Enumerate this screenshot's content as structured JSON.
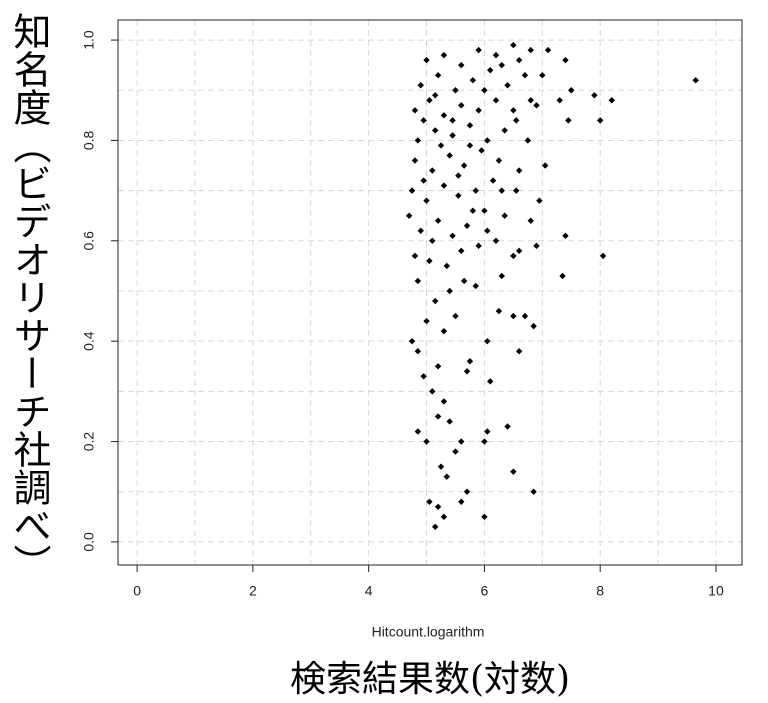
{
  "chart_data": {
    "type": "scatter",
    "x_label": "Hitcount.logarithm",
    "x_label_ja": "検索結果数(対数)",
    "y_label": "知名度（ビデオリサーチ社調べ）",
    "color": "#000000",
    "grid": true,
    "xlim": [
      -0.33,
      10.45
    ],
    "ylim": [
      -0.046,
      1.04
    ],
    "xticks": [
      0,
      2,
      4,
      6,
      8,
      10
    ],
    "yticks": [
      {
        "value": 0,
        "label": "0.0"
      },
      0.2,
      0.4,
      0.6,
      0.8,
      {
        "value": 1,
        "label": "1.0"
      }
    ],
    "xgrid": [
      0,
      1,
      2,
      3,
      4,
      5,
      6,
      7,
      8,
      9,
      10
    ],
    "ygrid": [
      0,
      0.1,
      0.2,
      0.3,
      0.4,
      0.5,
      0.6,
      0.7,
      0.8,
      0.9,
      1
    ],
    "x": [
      9.65,
      8.2,
      8.0,
      7.9,
      7.5,
      7.4,
      7.45,
      7.3,
      7.1,
      7.0,
      6.9,
      7.05,
      6.95,
      7.4,
      7.35,
      8.05,
      6.9,
      6.8,
      6.6,
      6.7,
      6.85,
      6.6,
      6.5,
      6.4,
      6.5,
      6.85,
      6.0,
      5.6,
      5.7,
      5.2,
      5.15,
      5.3,
      5.05,
      5.35,
      5.25,
      5.5,
      5.6,
      5.0,
      4.85,
      5.2,
      5.4,
      6.05,
      6.0,
      5.3,
      5.1,
      4.95,
      5.2,
      4.75,
      4.85,
      5.7,
      5.75,
      6.1,
      6.05,
      5.0,
      5.3,
      5.5,
      6.25,
      5.15,
      4.85,
      5.4,
      5.85,
      6.3,
      4.8,
      5.05,
      5.6,
      5.9,
      6.2,
      6.5,
      4.7,
      4.9,
      5.2,
      5.45,
      5.7,
      6.0,
      6.35,
      4.75,
      5.0,
      5.3,
      5.55,
      5.85,
      6.15,
      6.55,
      4.8,
      5.1,
      5.4,
      5.65,
      5.95,
      6.25,
      6.6,
      4.85,
      5.15,
      5.45,
      5.75,
      6.05,
      6.35,
      6.75,
      4.8,
      5.05,
      5.3,
      5.6,
      5.9,
      6.2,
      6.5,
      6.8,
      4.9,
      5.2,
      5.5,
      5.8,
      6.1,
      6.4,
      6.7,
      5.0,
      5.3,
      5.6,
      5.9,
      6.2,
      6.5,
      6.8,
      5.15,
      5.45,
      5.75,
      6.0,
      6.3,
      6.6,
      4.95,
      5.25,
      5.55,
      5.8,
      6.05,
      6.3,
      6.55,
      5.1,
      5.35,
      4.95,
      5.65
    ],
    "y": [
      0.92,
      0.88,
      0.84,
      0.89,
      0.9,
      0.96,
      0.84,
      0.88,
      0.98,
      0.93,
      0.87,
      0.75,
      0.68,
      0.61,
      0.53,
      0.57,
      0.59,
      0.64,
      0.58,
      0.45,
      0.43,
      0.38,
      0.45,
      0.23,
      0.14,
      0.1,
      0.05,
      0.08,
      0.1,
      0.07,
      0.03,
      0.05,
      0.08,
      0.13,
      0.15,
      0.18,
      0.2,
      0.2,
      0.22,
      0.25,
      0.24,
      0.22,
      0.2,
      0.28,
      0.3,
      0.33,
      0.35,
      0.4,
      0.38,
      0.34,
      0.36,
      0.32,
      0.4,
      0.44,
      0.42,
      0.45,
      0.46,
      0.48,
      0.52,
      0.5,
      0.51,
      0.53,
      0.57,
      0.56,
      0.58,
      0.59,
      0.6,
      0.57,
      0.65,
      0.62,
      0.64,
      0.61,
      0.63,
      0.66,
      0.65,
      0.7,
      0.68,
      0.71,
      0.69,
      0.7,
      0.72,
      0.7,
      0.76,
      0.74,
      0.77,
      0.75,
      0.78,
      0.76,
      0.74,
      0.8,
      0.82,
      0.81,
      0.83,
      0.8,
      0.82,
      0.8,
      0.86,
      0.88,
      0.85,
      0.87,
      0.86,
      0.88,
      0.86,
      0.88,
      0.91,
      0.93,
      0.9,
      0.92,
      0.94,
      0.91,
      0.93,
      0.96,
      0.97,
      0.95,
      0.98,
      0.97,
      0.99,
      0.98,
      0.89,
      0.84,
      0.79,
      0.9,
      0.95,
      0.96,
      0.84,
      0.79,
      0.73,
      0.66,
      0.62,
      0.7,
      0.84,
      0.6,
      0.55,
      0.72,
      0.52
    ]
  }
}
